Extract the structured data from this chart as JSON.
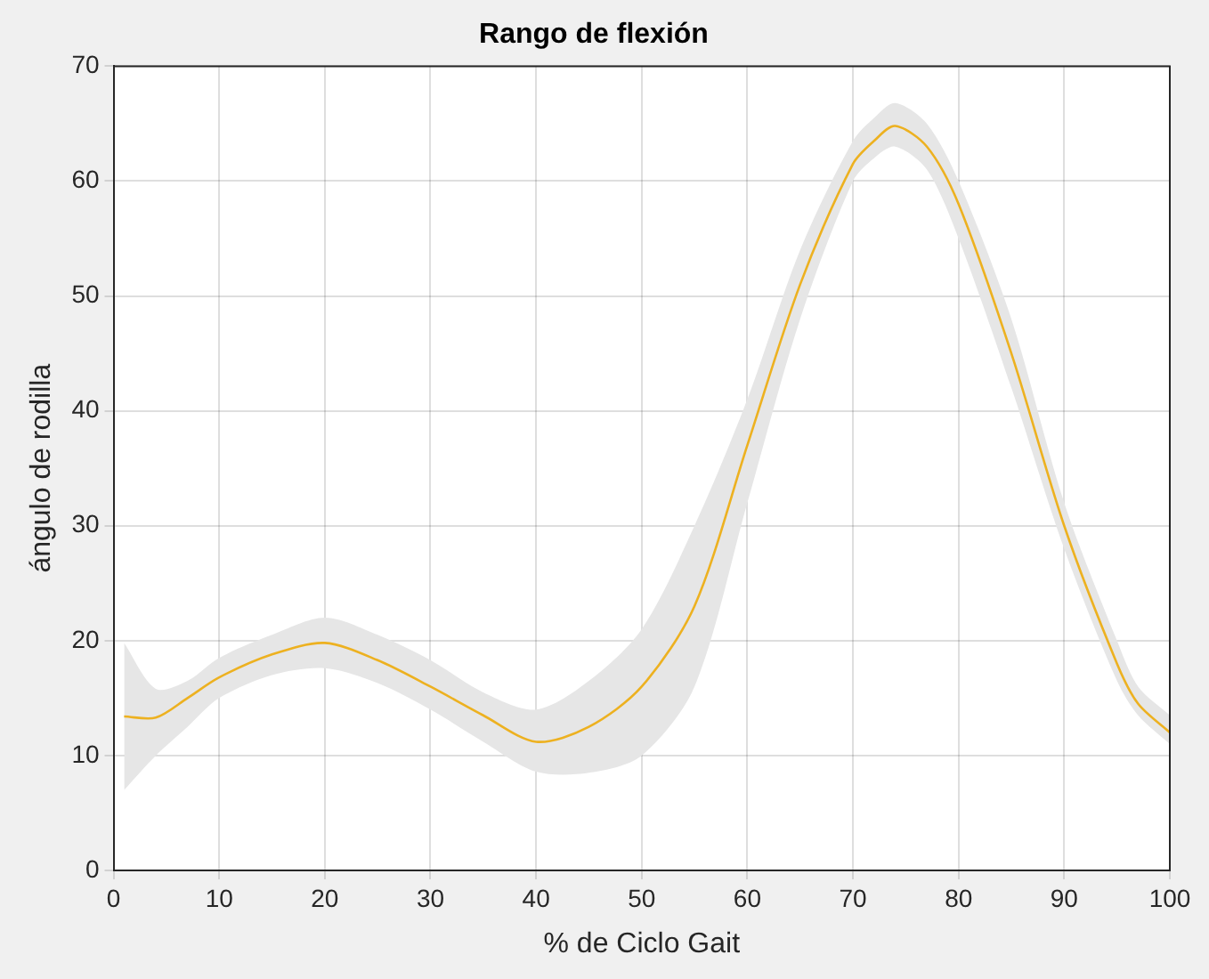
{
  "chart_data": {
    "type": "line",
    "title": "Rango de flexión",
    "xlabel": "% de Ciclo Gait",
    "ylabel": "ángulo de rodilla",
    "x": [
      1,
      4,
      7,
      10,
      15,
      20,
      25,
      30,
      35,
      40,
      45,
      50,
      55,
      60,
      65,
      70,
      72,
      74,
      77,
      80,
      85,
      90,
      95,
      97,
      100
    ],
    "series": [
      {
        "color": "#edb120",
        "values": [
          13.4,
          13.3,
          15,
          16.8,
          18.8,
          19.8,
          18.3,
          16,
          13.5,
          11.2,
          12.5,
          16,
          23,
          37,
          51,
          61.5,
          63.5,
          64.8,
          63,
          58,
          45,
          30,
          18,
          14.5,
          12
        ],
        "lower": [
          7,
          10,
          12.5,
          15,
          17,
          17.6,
          16.3,
          14,
          11.2,
          8.6,
          8.5,
          10,
          16,
          32,
          48,
          60,
          62,
          63,
          61,
          55,
          42,
          28,
          16.5,
          13.5,
          11
        ],
        "upper": [
          19.8,
          15.8,
          16.5,
          18.5,
          20.5,
          22,
          20.5,
          18.3,
          15.5,
          14,
          16.5,
          21,
          30,
          41,
          54,
          63.5,
          65.5,
          66.8,
          65,
          60,
          48,
          32,
          20,
          16,
          13.5
        ]
      }
    ],
    "xlim": [
      0,
      100
    ],
    "xticks": [
      0,
      10,
      20,
      30,
      40,
      50,
      60,
      70,
      80,
      90,
      100
    ],
    "ylim": [
      0,
      70
    ],
    "yticks": [
      0,
      10,
      20,
      30,
      40,
      50,
      60,
      70
    ],
    "grid": true,
    "legend": false,
    "marker": "none",
    "line_style": "solid"
  }
}
